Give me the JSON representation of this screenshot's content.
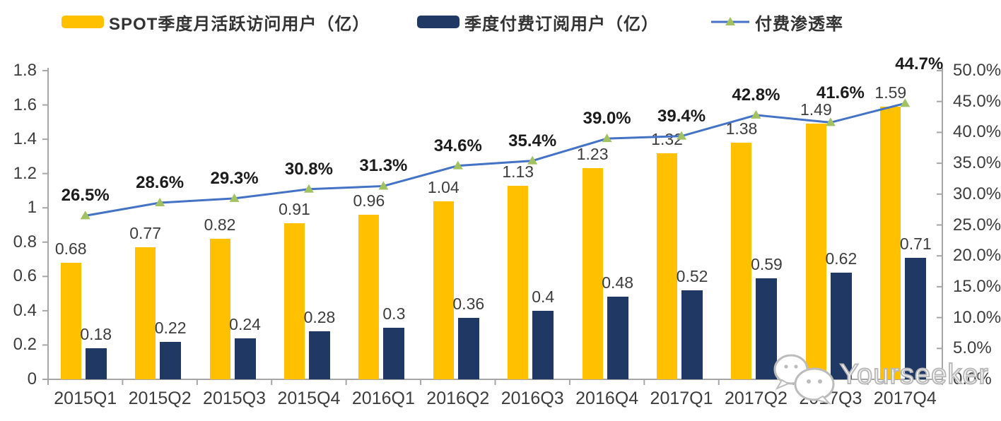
{
  "legend": {
    "items": [
      {
        "label": "SPOT季度月活跃访问用户（亿）",
        "color": "#FFC000",
        "type": "bar"
      },
      {
        "label": "季度付费订阅用户（亿）",
        "color": "#1F3864",
        "type": "bar"
      },
      {
        "label": "付费渗透率",
        "color": "#4472C4",
        "marker_color": "#A2C162",
        "type": "line"
      }
    ]
  },
  "watermark": {
    "text": "Yourseeker",
    "icon": "wechat-icon"
  },
  "chart_data": {
    "type": "combo",
    "categories": [
      "2015Q1",
      "2015Q2",
      "2015Q3",
      "2015Q4",
      "2016Q1",
      "2016Q2",
      "2016Q3",
      "2016Q4",
      "2017Q1",
      "2017Q2",
      "2017Q3",
      "2017Q4"
    ],
    "series": [
      {
        "name": "SPOT季度月活跃访问用户（亿）",
        "type": "bar",
        "axis": "left",
        "color": "#FFC000",
        "values": [
          0.68,
          0.77,
          0.82,
          0.91,
          0.96,
          1.04,
          1.13,
          1.23,
          1.32,
          1.38,
          1.49,
          1.59
        ],
        "labels": [
          "0.68",
          "0.77",
          "0.82",
          "0.91",
          "0.96",
          "1.04",
          "1.13",
          "1.23",
          "1.32",
          "1.38",
          "1.49",
          "1.59"
        ]
      },
      {
        "name": "季度付费订阅用户（亿）",
        "type": "bar",
        "axis": "left",
        "color": "#1F3864",
        "values": [
          0.18,
          0.22,
          0.24,
          0.28,
          0.3,
          0.36,
          0.4,
          0.48,
          0.52,
          0.59,
          0.62,
          0.71
        ],
        "labels": [
          "0.18",
          "0.22",
          "0.24",
          "0.28",
          "0.3",
          "0.36",
          "0.4",
          "0.48",
          "0.52",
          "0.59",
          "0.62",
          "0.71"
        ]
      },
      {
        "name": "付费渗透率",
        "type": "line",
        "axis": "right",
        "color": "#4472C4",
        "marker": "triangle",
        "marker_color": "#A2C162",
        "values": [
          26.5,
          28.6,
          29.3,
          30.8,
          31.3,
          34.6,
          35.4,
          39.0,
          39.4,
          42.8,
          41.6,
          44.7
        ],
        "labels": [
          "26.5%",
          "28.6%",
          "29.3%",
          "30.8%",
          "31.3%",
          "34.6%",
          "35.4%",
          "39.0%",
          "39.4%",
          "42.8%",
          "41.6%",
          "44.7%"
        ]
      }
    ],
    "left_axis": {
      "min": 0,
      "max": 1.8,
      "step": 0.2,
      "tick_labels": [
        "0",
        "0.2",
        "0.4",
        "0.6",
        "0.8",
        "1",
        "1.2",
        "1.4",
        "1.6",
        "1.8"
      ]
    },
    "right_axis": {
      "min": 0,
      "max": 50,
      "step": 5,
      "tick_labels": [
        "0.0%",
        "5.0%",
        "10.0%",
        "15.0%",
        "20.0%",
        "25.0%",
        "30.0%",
        "35.0%",
        "40.0%",
        "45.0%",
        "50.0%"
      ]
    },
    "grid": false,
    "legend_position": "top",
    "label_adjust": {
      "pct_dx": [
        0,
        0,
        0,
        0,
        0,
        0,
        0,
        0,
        0,
        0,
        14,
        20
      ],
      "pct_dy": [
        0,
        0,
        0,
        0,
        0,
        0,
        0,
        0,
        0,
        0,
        -13,
        -27
      ]
    }
  }
}
